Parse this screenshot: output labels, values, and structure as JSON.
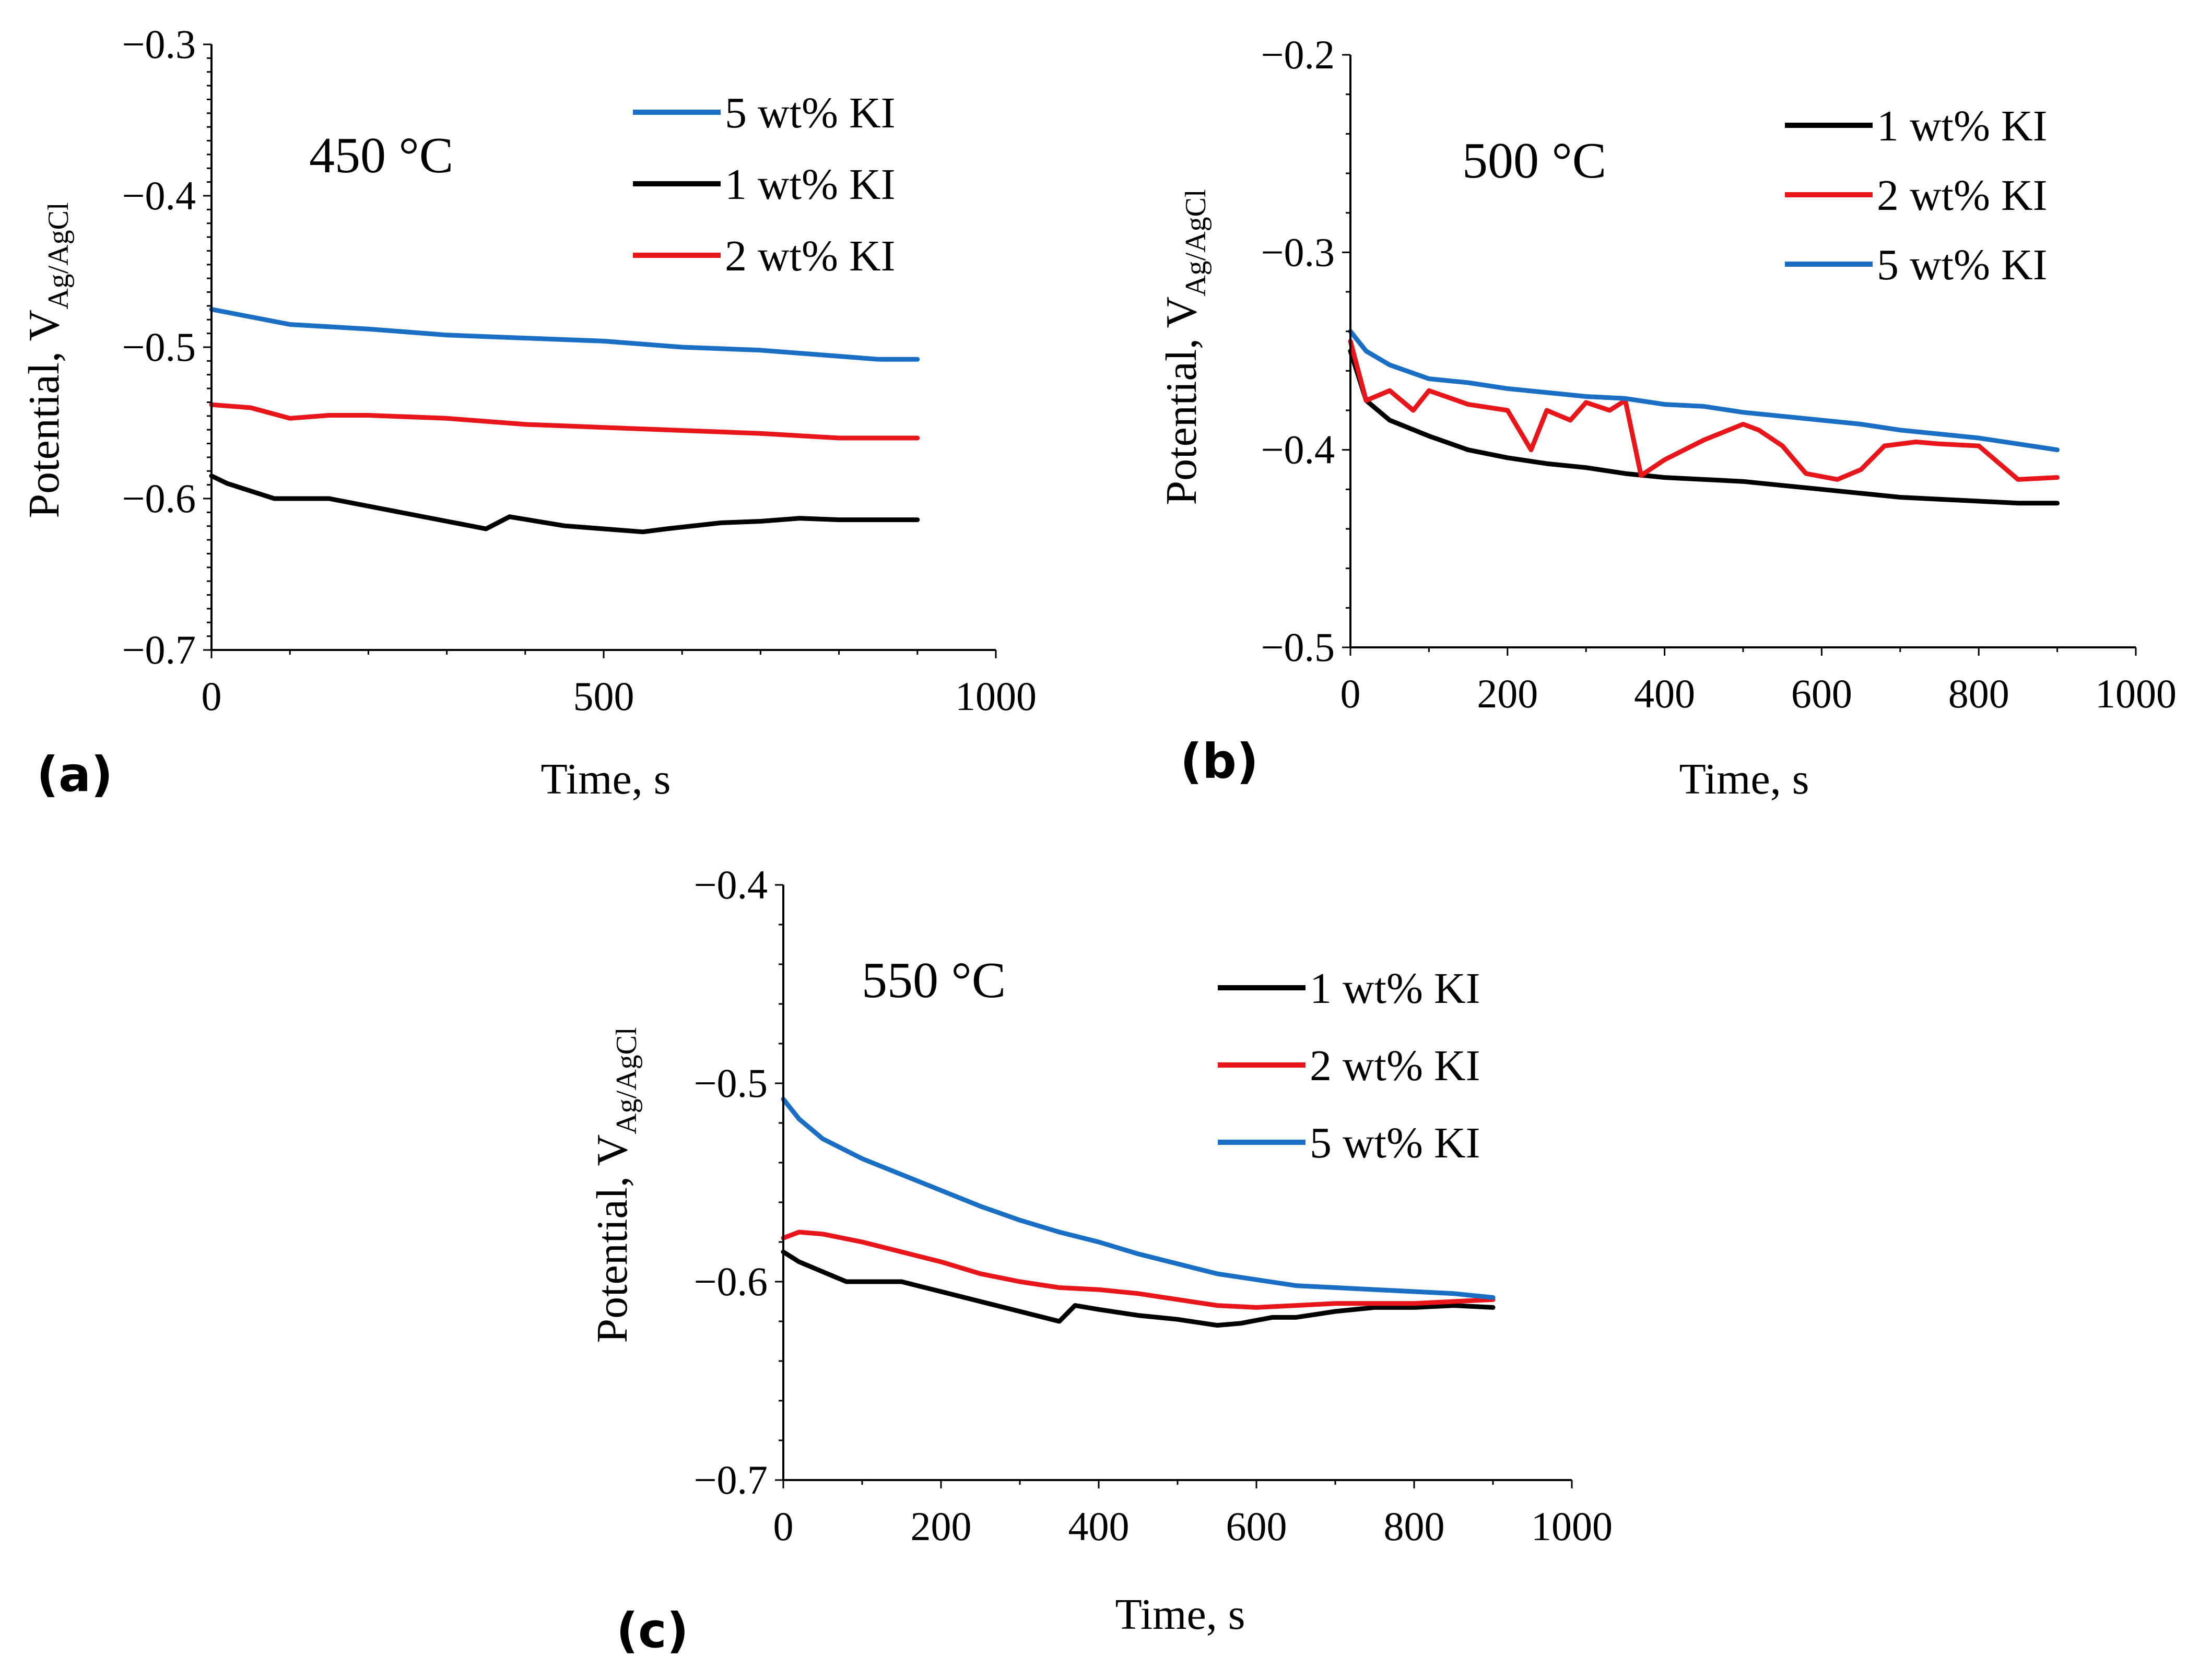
{
  "chart_data": [
    {
      "panel": "(a)",
      "type": "line",
      "annotation": "450 °C",
      "xlabel": "Time, s",
      "ylabel": "Potential, ",
      "ylabel_main": "V",
      "ylabel_sub": "Ag/AgCl",
      "xlim": [
        0,
        1000
      ],
      "ylim": [
        -0.7,
        -0.3
      ],
      "xticks": [
        0,
        500,
        1000
      ],
      "xtick_labels": [
        "0",
        "500",
        "1000"
      ],
      "yticks": [
        -0.7,
        -0.6,
        -0.5,
        -0.4,
        -0.3
      ],
      "ytick_labels": [
        "−0.7",
        "−0.6",
        "−0.5",
        "−0.4",
        "−0.3"
      ],
      "legend": "top-right",
      "series": [
        {
          "name": "5 wt% KI",
          "color": "#1a6fc4",
          "x": [
            0,
            50,
            100,
            200,
            300,
            400,
            500,
            600,
            700,
            800,
            850,
            900
          ],
          "y": [
            -0.475,
            -0.48,
            -0.485,
            -0.488,
            -0.492,
            -0.494,
            -0.496,
            -0.5,
            -0.502,
            -0.506,
            -0.508,
            -0.508
          ]
        },
        {
          "name": "1 wt% KI",
          "color": "#000000",
          "x": [
            0,
            20,
            50,
            80,
            100,
            150,
            200,
            250,
            300,
            350,
            380,
            450,
            500,
            550,
            580,
            650,
            700,
            750,
            800,
            850,
            900
          ],
          "y": [
            -0.585,
            -0.59,
            -0.595,
            -0.6,
            -0.6,
            -0.6,
            -0.605,
            -0.61,
            -0.615,
            -0.62,
            -0.612,
            -0.618,
            -0.62,
            -0.622,
            -0.62,
            -0.616,
            -0.615,
            -0.613,
            -0.614,
            -0.614,
            -0.614
          ]
        },
        {
          "name": "2 wt% KI",
          "color": "#e8161a",
          "x": [
            0,
            50,
            100,
            150,
            200,
            300,
            400,
            500,
            600,
            700,
            800,
            900
          ],
          "y": [
            -0.538,
            -0.54,
            -0.547,
            -0.545,
            -0.545,
            -0.547,
            -0.551,
            -0.553,
            -0.555,
            -0.557,
            -0.56,
            -0.56
          ]
        }
      ]
    },
    {
      "panel": "(b)",
      "type": "line",
      "annotation": "500 °C",
      "xlabel": "Time, s",
      "ylabel": "Potential, ",
      "ylabel_main": "V",
      "ylabel_sub": "Ag/AgCl",
      "xlim": [
        0,
        1000
      ],
      "ylim": [
        -0.5,
        -0.2
      ],
      "xticks": [
        0,
        200,
        400,
        600,
        800,
        1000
      ],
      "xtick_labels": [
        "0",
        "200",
        "400",
        "600",
        "800",
        "1000"
      ],
      "yticks": [
        -0.5,
        -0.4,
        -0.3,
        -0.2
      ],
      "ytick_labels": [
        "−0.5",
        "−0.4",
        "−0.3",
        "−0.2"
      ],
      "legend": "top-right",
      "series": [
        {
          "name": "1 wt% KI",
          "color": "#000000",
          "x": [
            0,
            20,
            50,
            100,
            150,
            200,
            250,
            300,
            350,
            400,
            450,
            500,
            550,
            600,
            650,
            700,
            750,
            800,
            850,
            900
          ],
          "y": [
            -0.35,
            -0.375,
            -0.385,
            -0.393,
            -0.4,
            -0.404,
            -0.407,
            -0.409,
            -0.412,
            -0.414,
            -0.415,
            -0.416,
            -0.418,
            -0.42,
            -0.422,
            -0.424,
            -0.425,
            -0.426,
            -0.427,
            -0.427
          ]
        },
        {
          "name": "2 wt% KI",
          "color": "#e8161a",
          "x": [
            0,
            20,
            50,
            80,
            100,
            150,
            200,
            230,
            250,
            280,
            300,
            330,
            350,
            370,
            400,
            450,
            500,
            520,
            550,
            580,
            620,
            650,
            680,
            720,
            750,
            800,
            850,
            900
          ],
          "y": [
            -0.345,
            -0.375,
            -0.37,
            -0.38,
            -0.37,
            -0.377,
            -0.38,
            -0.4,
            -0.38,
            -0.385,
            -0.376,
            -0.38,
            -0.375,
            -0.413,
            -0.405,
            -0.395,
            -0.387,
            -0.39,
            -0.398,
            -0.412,
            -0.415,
            -0.41,
            -0.398,
            -0.396,
            -0.397,
            -0.398,
            -0.415,
            -0.414
          ]
        },
        {
          "name": "5 wt% KI",
          "color": "#1a6fc4",
          "x": [
            0,
            20,
            50,
            100,
            150,
            200,
            250,
            300,
            350,
            400,
            450,
            500,
            550,
            600,
            650,
            700,
            750,
            800,
            850,
            900
          ],
          "y": [
            -0.34,
            -0.35,
            -0.357,
            -0.364,
            -0.366,
            -0.369,
            -0.371,
            -0.373,
            -0.374,
            -0.377,
            -0.378,
            -0.381,
            -0.383,
            -0.385,
            -0.387,
            -0.39,
            -0.392,
            -0.394,
            -0.397,
            -0.4
          ]
        }
      ]
    },
    {
      "panel": "(c)",
      "type": "line",
      "annotation": "550 °C",
      "xlabel": "Time, s",
      "ylabel": "Potential, ",
      "ylabel_main": "V",
      "ylabel_sub": "Ag/AgCl",
      "xlim": [
        0,
        1000
      ],
      "ylim": [
        -0.7,
        -0.4
      ],
      "xticks": [
        0,
        200,
        400,
        600,
        800,
        1000
      ],
      "xtick_labels": [
        "0",
        "200",
        "400",
        "600",
        "800",
        "1000"
      ],
      "yticks": [
        -0.7,
        -0.6,
        -0.5,
        -0.4
      ],
      "ytick_labels": [
        "−0.7",
        "−0.6",
        "−0.5",
        "−0.4"
      ],
      "legend": "top-right",
      "series": [
        {
          "name": "1 wt% KI",
          "color": "#000000",
          "x": [
            0,
            20,
            50,
            80,
            100,
            150,
            200,
            250,
            300,
            350,
            370,
            400,
            450,
            500,
            550,
            580,
            620,
            650,
            700,
            750,
            800,
            850,
            900
          ],
          "y": [
            -0.585,
            -0.59,
            -0.595,
            -0.6,
            -0.6,
            -0.6,
            -0.605,
            -0.61,
            -0.615,
            -0.62,
            -0.612,
            -0.614,
            -0.617,
            -0.619,
            -0.622,
            -0.621,
            -0.618,
            -0.618,
            -0.615,
            -0.613,
            -0.613,
            -0.612,
            -0.613
          ]
        },
        {
          "name": "2 wt% KI",
          "color": "#e8161a",
          "x": [
            0,
            20,
            50,
            100,
            150,
            200,
            250,
            300,
            350,
            400,
            450,
            500,
            550,
            600,
            650,
            700,
            750,
            800,
            850,
            900
          ],
          "y": [
            -0.578,
            -0.575,
            -0.576,
            -0.58,
            -0.585,
            -0.59,
            -0.596,
            -0.6,
            -0.603,
            -0.604,
            -0.606,
            -0.609,
            -0.612,
            -0.613,
            -0.612,
            -0.611,
            -0.611,
            -0.611,
            -0.61,
            -0.609
          ]
        },
        {
          "name": "5 wt% KI",
          "color": "#1a6fc4",
          "x": [
            0,
            20,
            50,
            100,
            150,
            200,
            250,
            300,
            350,
            400,
            450,
            500,
            550,
            600,
            650,
            700,
            750,
            800,
            850,
            900
          ],
          "y": [
            -0.508,
            -0.518,
            -0.528,
            -0.538,
            -0.546,
            -0.554,
            -0.562,
            -0.569,
            -0.575,
            -0.58,
            -0.586,
            -0.591,
            -0.596,
            -0.599,
            -0.602,
            -0.603,
            -0.604,
            -0.605,
            -0.606,
            -0.608
          ]
        }
      ]
    }
  ]
}
